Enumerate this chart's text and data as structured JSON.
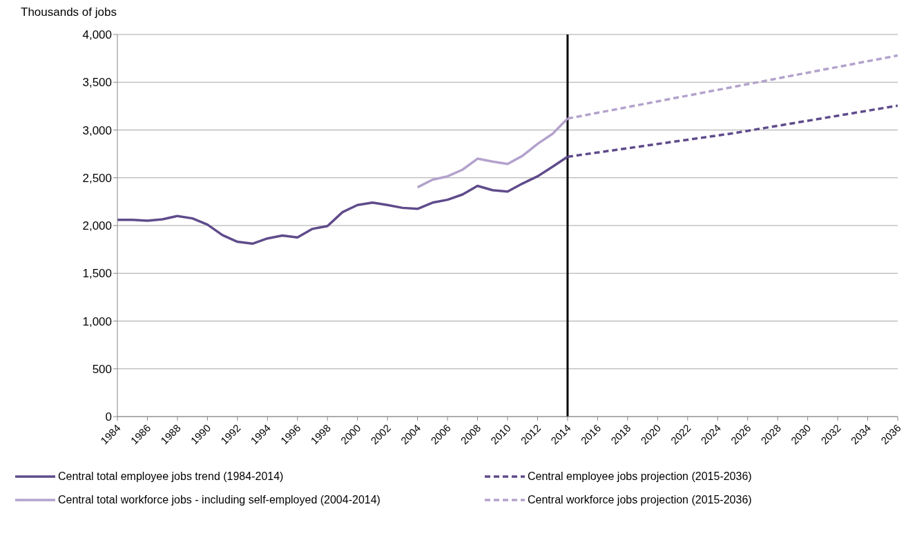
{
  "chart_data": {
    "type": "line",
    "ylabel": "Thousands of jobs",
    "xlim": [
      1984,
      2036
    ],
    "xticks": [
      1984,
      1986,
      1988,
      1990,
      1992,
      1994,
      1996,
      1998,
      2000,
      2002,
      2004,
      2006,
      2008,
      2010,
      2012,
      2014,
      2016,
      2018,
      2020,
      2022,
      2024,
      2026,
      2028,
      2030,
      2032,
      2034,
      2036
    ],
    "ylim": [
      0,
      4000
    ],
    "yticks": [
      {
        "value": 0,
        "label": "0"
      },
      {
        "value": 500,
        "label": "500"
      },
      {
        "value": 1000,
        "label": "1,000"
      },
      {
        "value": 1500,
        "label": "1,500"
      },
      {
        "value": 2000,
        "label": "2,000"
      },
      {
        "value": 2500,
        "label": "2,500"
      },
      {
        "value": 3000,
        "label": "3,000"
      },
      {
        "value": 3500,
        "label": "3,500"
      },
      {
        "value": 4000,
        "label": "4,000"
      }
    ],
    "grid": "y",
    "legend": "bottom",
    "marker": "none",
    "ref_lines": [
      {
        "axis": "x",
        "value": 2014,
        "color": "#000000"
      }
    ],
    "series": [
      {
        "name": "Central total employee jobs trend (1984-2014)",
        "color": "#5f4b8b",
        "line_style": "solid",
        "x": [
          1984,
          1985,
          1986,
          1987,
          1988,
          1989,
          1990,
          1991,
          1992,
          1993,
          1994,
          1995,
          1996,
          1997,
          1998,
          1999,
          2000,
          2001,
          2002,
          2003,
          2004,
          2005,
          2006,
          2007,
          2008,
          2009,
          2010,
          2011,
          2012,
          2013,
          2014
        ],
        "values": [
          2060,
          2060,
          2050,
          2065,
          2100,
          2075,
          2010,
          1900,
          1830,
          1810,
          1865,
          1895,
          1875,
          1965,
          1995,
          2140,
          2215,
          2240,
          2215,
          2185,
          2175,
          2240,
          2270,
          2325,
          2415,
          2370,
          2355,
          2440,
          2515,
          2615,
          2720
        ]
      },
      {
        "name": "Central  employee jobs projection (2015-2036)",
        "color": "#5f4b8b",
        "line_style": "dashed",
        "x": [
          2014,
          2025,
          2036
        ],
        "values": [
          2720,
          2965,
          3255
        ]
      },
      {
        "name": "Central total workforce  jobs - including self-employed (2004-2014)",
        "color": "#b3a2cc",
        "line_style": "solid",
        "x": [
          2004,
          2005,
          2006,
          2007,
          2008,
          2009,
          2010,
          2011,
          2012,
          2013,
          2014
        ],
        "values": [
          2400,
          2480,
          2515,
          2585,
          2700,
          2670,
          2645,
          2730,
          2855,
          2960,
          3120
        ]
      },
      {
        "name": "Central workforce jobs projection (2015-2036)",
        "color": "#b3a2cc",
        "line_style": "dashed",
        "x": [
          2014,
          2025,
          2036
        ],
        "values": [
          3120,
          3450,
          3780
        ]
      }
    ]
  }
}
